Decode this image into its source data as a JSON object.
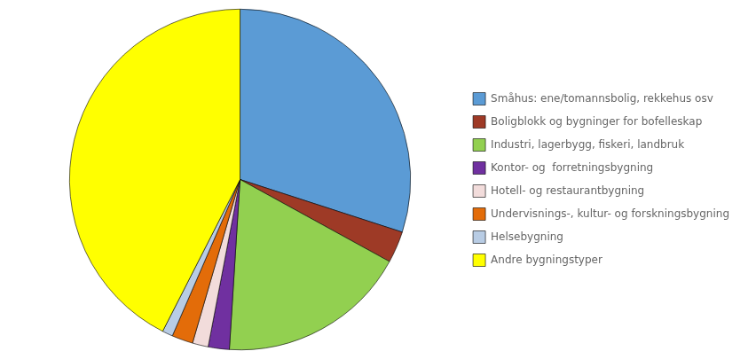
{
  "chart_data": {
    "type": "pie",
    "categories": [
      "Småhus: ene/tomannsbolig, rekkehus osv",
      "Boligblokk og bygninger for bofelleskap",
      "Industri, lagerbygg, fiskeri, landbruk",
      "Kontor- og  forretningsbygning",
      "Hotell- og restaurantbygning",
      "Undervisnings-, kultur- og forskningsbygning",
      "Helsebygning",
      "Andre bygningstyper"
    ],
    "values": [
      30,
      3,
      18,
      2,
      1.5,
      2,
      1,
      42.5
    ],
    "colors": [
      "#5B9BD5",
      "#9E3A26",
      "#92D050",
      "#7030A0",
      "#F2DCDB",
      "#E36C09",
      "#B8CCE4",
      "#FFFF00"
    ],
    "legend": "right"
  }
}
